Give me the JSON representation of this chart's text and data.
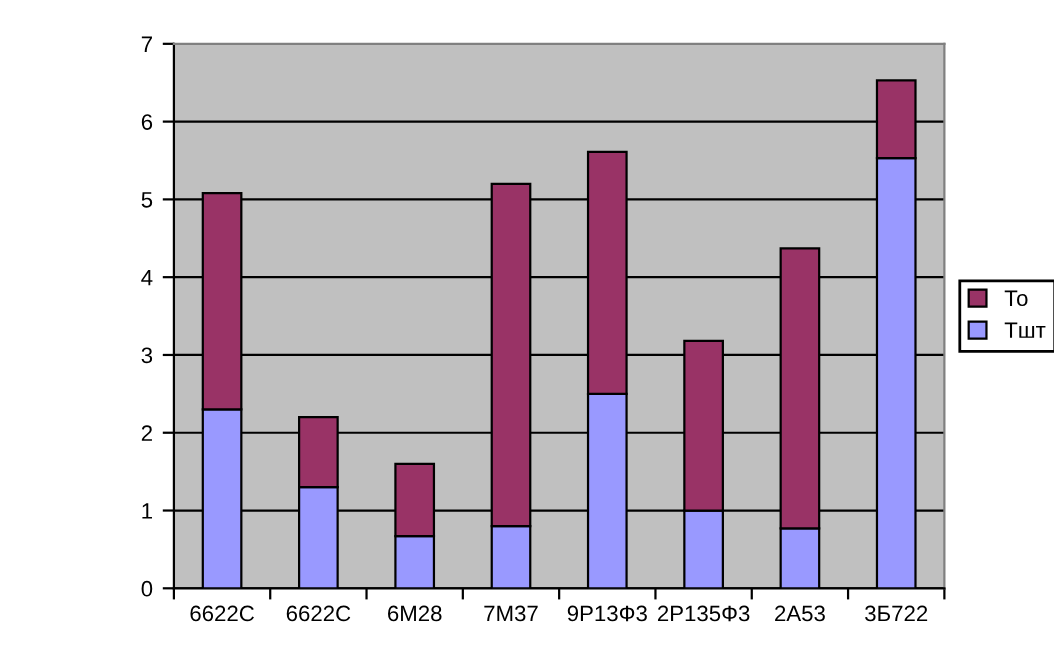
{
  "chart_data": {
    "type": "bar",
    "stacked": true,
    "categories": [
      "6622C",
      "6622C",
      "6M28",
      "7M37",
      "9Р13Ф3",
      "2Р135Ф3",
      "2А53",
      "3Б722"
    ],
    "series": [
      {
        "name": "Тшт",
        "color": "#9999ff",
        "values": [
          2.3,
          1.3,
          0.67,
          0.8,
          2.5,
          1.0,
          0.77,
          5.53
        ]
      },
      {
        "name": "То",
        "color": "#993366",
        "values": [
          2.78,
          0.9,
          0.93,
          4.4,
          3.11,
          2.18,
          3.6,
          1.0
        ]
      }
    ],
    "ylim": [
      0,
      7
    ],
    "yticks": [
      0,
      1,
      2,
      3,
      4,
      5,
      6,
      7
    ],
    "grid": "y",
    "legend": "right"
  }
}
